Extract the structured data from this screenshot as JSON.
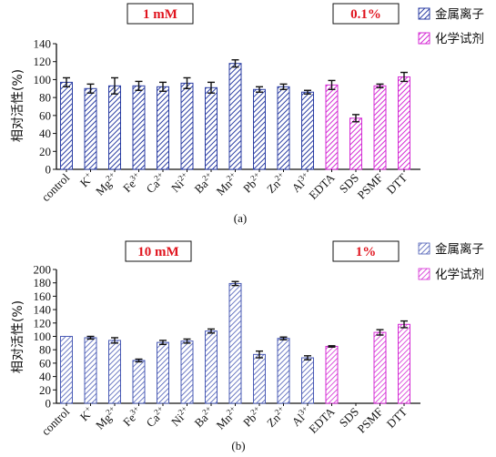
{
  "colors": {
    "blue": "#2b3ea3",
    "blue_light": "#8791c9",
    "magenta": "#d42ad4",
    "red": "#e0141e"
  },
  "chart_data": [
    {
      "type": "bar",
      "caption": "(a)",
      "concentration_labels": [
        "1 mM",
        "0.1%"
      ],
      "ylabel": "相对活性(%)",
      "ylim": [
        0,
        140
      ],
      "yticks": [
        0,
        20,
        40,
        60,
        80,
        100,
        120,
        140
      ],
      "categories": [
        {
          "base": "control",
          "sup": ""
        },
        {
          "base": "K",
          "sup": "+"
        },
        {
          "base": "Mg",
          "sup": "2+"
        },
        {
          "base": "Fe",
          "sup": "3+"
        },
        {
          "base": "Ca",
          "sup": "2+"
        },
        {
          "base": "Ni",
          "sup": "2+"
        },
        {
          "base": "Ba",
          "sup": "2+"
        },
        {
          "base": "Mn",
          "sup": "2+"
        },
        {
          "base": "Pb",
          "sup": "2+"
        },
        {
          "base": "Zn",
          "sup": "2+"
        },
        {
          "base": "Al",
          "sup": "3+"
        },
        {
          "base": "EDTA",
          "sup": ""
        },
        {
          "base": "SDS",
          "sup": ""
        },
        {
          "base": "PSMF",
          "sup": ""
        },
        {
          "base": "DTT",
          "sup": ""
        }
      ],
      "series": [
        {
          "name": "金属离子",
          "values": [
            97,
            90,
            93,
            93,
            92,
            96,
            91,
            118,
            89,
            92,
            86,
            null,
            null,
            null,
            null
          ],
          "errors": [
            5,
            5,
            9,
            5,
            5,
            6,
            6,
            4,
            3,
            3,
            2,
            null,
            null,
            null,
            null
          ]
        },
        {
          "name": "化学试剂",
          "values": [
            null,
            null,
            null,
            null,
            null,
            null,
            null,
            null,
            null,
            null,
            null,
            94,
            57,
            93,
            103
          ],
          "errors": [
            null,
            null,
            null,
            null,
            null,
            null,
            null,
            null,
            null,
            null,
            null,
            5,
            4,
            2,
            5
          ]
        }
      ],
      "legend": "top-right",
      "grid": false
    },
    {
      "type": "bar",
      "caption": "(b)",
      "concentration_labels": [
        "10 mM",
        "1%"
      ],
      "ylabel": "相对活性(%)",
      "ylim": [
        0,
        200
      ],
      "yticks": [
        0,
        20,
        40,
        60,
        80,
        100,
        120,
        140,
        160,
        180,
        200
      ],
      "categories": [
        {
          "base": "control",
          "sup": ""
        },
        {
          "base": "K",
          "sup": "+"
        },
        {
          "base": "Mg",
          "sup": "2+"
        },
        {
          "base": "Fe",
          "sup": "3+"
        },
        {
          "base": "Ca",
          "sup": "2+"
        },
        {
          "base": "Ni",
          "sup": "2+"
        },
        {
          "base": "Ba",
          "sup": "2+"
        },
        {
          "base": "Mn",
          "sup": "2+"
        },
        {
          "base": "Pb",
          "sup": "2+"
        },
        {
          "base": "Zn",
          "sup": "2+"
        },
        {
          "base": "Al",
          "sup": "3+"
        },
        {
          "base": "EDTA",
          "sup": ""
        },
        {
          "base": "SDS",
          "sup": ""
        },
        {
          "base": "PSMF",
          "sup": ""
        },
        {
          "base": "DTT",
          "sup": ""
        }
      ],
      "series": [
        {
          "name": "金属离子",
          "values": [
            100,
            98,
            94,
            64,
            91,
            93,
            108,
            179,
            73,
            97,
            68,
            null,
            null,
            null,
            null
          ],
          "errors": [
            0,
            2,
            4,
            2,
            3,
            3,
            3,
            3,
            5,
            2,
            3,
            null,
            null,
            null,
            null
          ]
        },
        {
          "name": "化学试剂",
          "values": [
            null,
            null,
            null,
            null,
            null,
            null,
            null,
            null,
            null,
            null,
            null,
            85,
            0,
            106,
            118
          ],
          "errors": [
            null,
            null,
            null,
            null,
            null,
            null,
            null,
            null,
            null,
            null,
            null,
            1,
            0,
            4,
            5
          ]
        }
      ],
      "legend": "top-right",
      "grid": false
    }
  ]
}
